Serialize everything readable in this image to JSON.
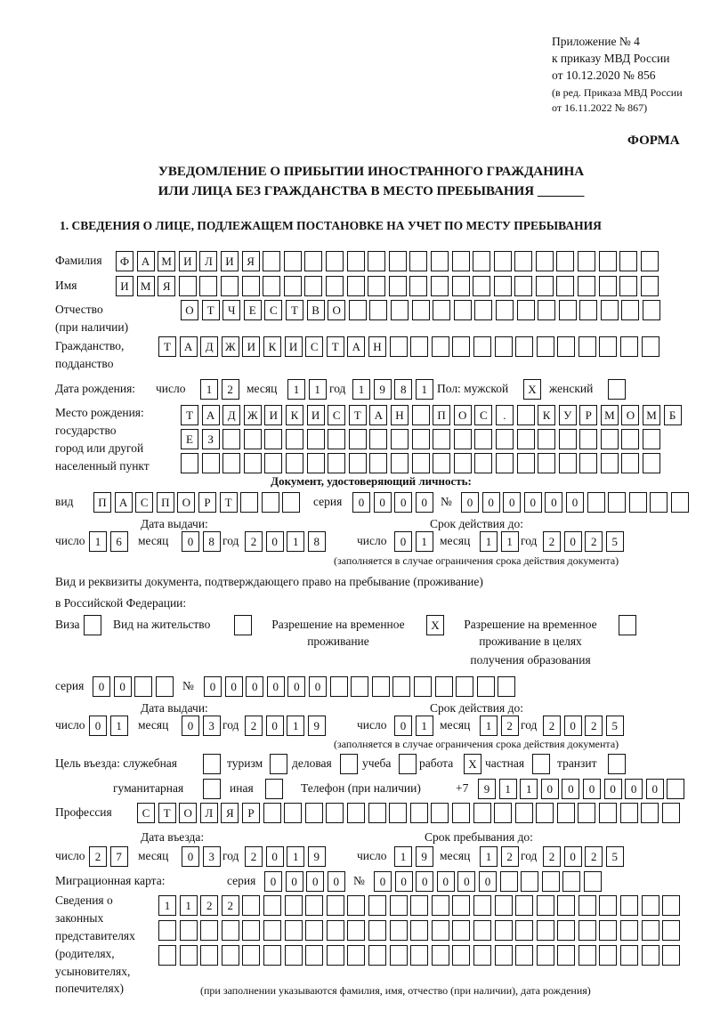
{
  "header": {
    "appendix": [
      "Приложение № 4",
      "к приказу МВД России",
      "от 10.12.2020 № 856"
    ],
    "revision": [
      "(в ред. Приказа МВД России",
      "от 16.11.2022 № 867)"
    ],
    "form_label": "ФОРМА",
    "title_line1": "УВЕДОМЛЕНИЕ О ПРИБЫТИИ ИНОСТРАННОГО ГРАЖДАНИНА",
    "title_line2": "ИЛИ ЛИЦА БЕЗ ГРАЖДАНСТВА В МЕСТО ПРЕБЫВАНИЯ _______"
  },
  "section1": {
    "title": "1. СВЕДЕНИЯ О ЛИЦЕ, ПОДЛЕЖАЩЕМ ПОСТАНОВКЕ НА УЧЕТ ПО МЕСТУ ПРЕБЫВАНИЯ",
    "surname": {
      "label": "Фамилия",
      "value": "ФАМИЛИЯ"
    },
    "name": {
      "label": "Имя",
      "value": "ИМЯ"
    },
    "patronymic": {
      "label1": "Отчество",
      "label2": "(при наличии)",
      "value": "ОТЧЕСТВО"
    },
    "citizenship": {
      "label1": "Гражданство,",
      "label2": "подданство",
      "value": "ТАДЖИКИСТАН"
    },
    "birth_date": {
      "label": "Дата рождения:",
      "day_label": "число",
      "day": "12",
      "month_label": "месяц",
      "month": "11",
      "year_label": "год",
      "year": "1981"
    },
    "sex": {
      "label": "Пол: мужской",
      "male": "X",
      "female_label": "женский",
      "female": ""
    },
    "birth_place": {
      "labels": [
        "Место рождения:",
        "государство",
        "город или другой",
        "населенный пункт"
      ],
      "line1": "ТАДЖИКИСТАН ПОС. КУРМОМБ",
      "line2": "ЕЗ",
      "line3": ""
    },
    "identity_doc": {
      "title": "Документ, удостоверяющий личность:",
      "type_label": "вид",
      "type": "ПАСПОРТ",
      "series_label": "серия",
      "series": "0000",
      "number_label": "№",
      "number": "000000",
      "issue_label": "Дата выдачи:",
      "valid_label": "Срок действия до:",
      "issue": {
        "day_label": "число",
        "day": "16",
        "month_label": "месяц",
        "month": "08",
        "year_label": "год",
        "year": "2018"
      },
      "valid": {
        "day_label": "число",
        "day": "01",
        "month_label": "месяц",
        "month": "11",
        "year_label": "год",
        "year": "2025"
      },
      "note": "(заполняется в случае ограничения срока действия документа)"
    },
    "residence_doc": {
      "title1": "Вид и реквизиты документа, подтверждающего право на пребывание (проживание)",
      "title2": "в Российской Федерации:",
      "visa_label": "Виза",
      "visa": "",
      "residence_permit_label": "Вид на жительство",
      "residence_permit": "",
      "temp_permit_label1": "Разрешение на временное",
      "temp_permit_label2": "проживание",
      "temp_permit": "X",
      "edu_permit_label1": "Разрешение на временное",
      "edu_permit_label2": "проживание в целях",
      "edu_permit_label3": "получения образования",
      "edu_permit": "",
      "series_label": "серия",
      "series": "00",
      "number_label": "№",
      "number": "000000",
      "issue_label": "Дата выдачи:",
      "valid_label": "Срок действия до:",
      "issue": {
        "day_label": "число",
        "day": "01",
        "month_label": "месяц",
        "month": "03",
        "year_label": "год",
        "year": "2019"
      },
      "valid": {
        "day_label": "число",
        "day": "01",
        "month_label": "месяц",
        "month": "12",
        "year_label": "год",
        "year": "2025"
      },
      "note": "(заполняется в случае ограничения срока действия документа)"
    },
    "purpose": {
      "label": "Цель въезда: служебная",
      "official": "",
      "tourism_label": "туризм",
      "tourism": "",
      "business_label": "деловая",
      "business": "",
      "study_label": "учеба",
      "study": "",
      "work_label": "работа",
      "work": "X",
      "private_label": "частная",
      "private": "",
      "transit_label": "транзит",
      "transit": "",
      "humanitarian_label": "гуманитарная",
      "humanitarian": "",
      "other_label": "иная",
      "other": ""
    },
    "phone": {
      "label": "Телефон (при наличии)",
      "prefix": "+7",
      "value": "911000000"
    },
    "profession": {
      "label": "Профессия",
      "value": "СТОЛЯР"
    },
    "entry": {
      "entry_label": "Дата въезда:",
      "stay_label": "Срок пребывания до:",
      "entry": {
        "day_label": "число",
        "day": "27",
        "month_label": "месяц",
        "month": "03",
        "year_label": "год",
        "year": "2019"
      },
      "stay": {
        "day_label": "число",
        "day": "19",
        "month_label": "месяц",
        "month": "12",
        "year_label": "год",
        "year": "2025"
      }
    },
    "migration_card": {
      "label": "Миграционная карта:",
      "series_label": "серия",
      "series": "0000",
      "number_label": "№",
      "number": "000000"
    },
    "representatives": {
      "labels": [
        "Сведения о",
        "законных",
        "представителях",
        "(родителях,",
        "усыновителях,",
        "попечителях)"
      ],
      "line1": "1122",
      "line2": "",
      "line3": "",
      "note": "(при заполнении указываются фамилия, имя, отчество (при наличии), дата рождения)"
    }
  }
}
